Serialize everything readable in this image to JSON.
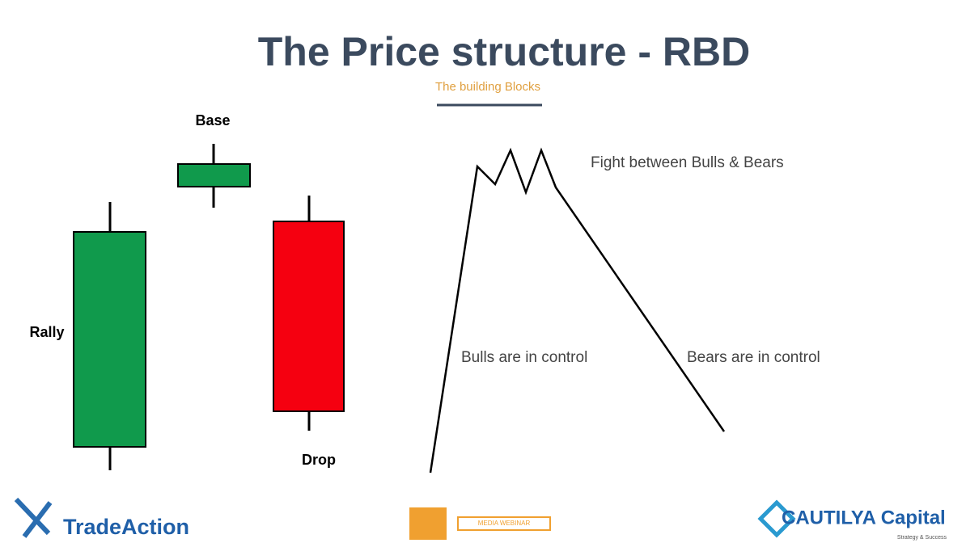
{
  "header": {
    "title": "The Price structure - RBD",
    "subtitle": "The building Blocks"
  },
  "candles": {
    "rally": "Rally",
    "base": "Base",
    "drop": "Drop"
  },
  "diagram": {
    "fight": "Fight between Bulls & Bears",
    "bulls": "Bulls are in control",
    "bears": "Bears are in control"
  },
  "footer": {
    "left_logo": "TradeAction",
    "center_logo": "MEDIA WEBINAR",
    "right_logo": "CAUTILYA Capital",
    "right_tagline": "Strategy & Success"
  }
}
